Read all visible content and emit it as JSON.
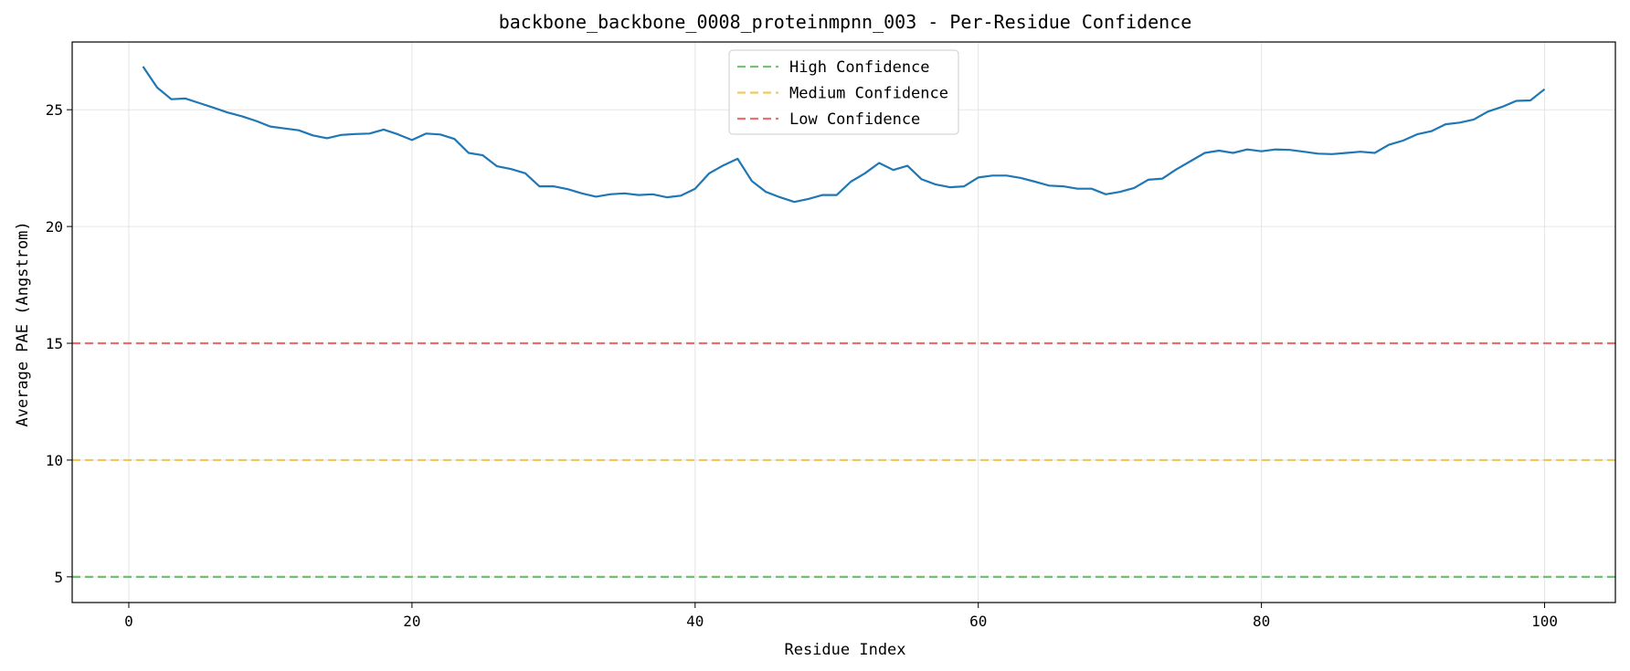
{
  "chart_data": {
    "type": "line",
    "title": "backbone_backbone_0008_proteinmpnn_003 - Per-Residue Confidence",
    "xlabel": "Residue Index",
    "ylabel": "Average PAE (Angstrom)",
    "xlim": [
      -4,
      105
    ],
    "ylim": [
      3.9,
      27.9
    ],
    "xticks": [
      0,
      20,
      40,
      60,
      80,
      100
    ],
    "yticks": [
      5,
      10,
      15,
      20,
      25
    ],
    "grid": true,
    "legend_position": "top-center",
    "series": [
      {
        "color": "#1f77b4",
        "x": [
          1,
          2,
          3,
          4,
          5,
          6,
          7,
          8,
          9,
          10,
          11,
          12,
          13,
          14,
          15,
          16,
          17,
          18,
          19,
          20,
          21,
          22,
          23,
          24,
          25,
          26,
          27,
          28,
          29,
          30,
          31,
          32,
          33,
          34,
          35,
          36,
          37,
          38,
          39,
          40,
          41,
          42,
          43,
          44,
          45,
          46,
          47,
          48,
          49,
          50,
          51,
          52,
          53,
          54,
          55,
          56,
          57,
          58,
          59,
          60,
          61,
          62,
          63,
          64,
          65,
          66,
          67,
          68,
          69,
          70,
          71,
          72,
          73,
          74,
          75,
          76,
          77,
          78,
          79,
          80,
          81,
          82,
          83,
          84,
          85,
          86,
          87,
          88,
          89,
          90,
          91,
          92,
          93,
          94,
          95,
          96,
          97,
          98,
          99,
          100
        ],
        "values": [
          26.85,
          25.95,
          25.45,
          25.48,
          25.28,
          25.08,
          24.88,
          24.72,
          24.52,
          24.28,
          24.2,
          24.12,
          23.9,
          23.78,
          23.92,
          23.96,
          23.98,
          24.15,
          23.95,
          23.7,
          23.98,
          23.94,
          23.75,
          23.15,
          23.05,
          22.58,
          22.46,
          22.28,
          21.72,
          21.72,
          21.6,
          21.42,
          21.28,
          21.38,
          21.42,
          21.35,
          21.38,
          21.25,
          21.32,
          21.62,
          22.28,
          22.62,
          22.9,
          21.95,
          21.48,
          21.25,
          21.05,
          21.18,
          21.35,
          21.35,
          21.92,
          22.28,
          22.72,
          22.42,
          22.6,
          22.02,
          21.8,
          21.68,
          21.72,
          22.1,
          22.18,
          22.18,
          22.08,
          21.92,
          21.75,
          21.72,
          21.62,
          21.62,
          21.38,
          21.48,
          21.65,
          22.0,
          22.05,
          22.45,
          22.8,
          23.15,
          23.25,
          23.15,
          23.3,
          23.22,
          23.3,
          23.28,
          23.2,
          23.12,
          23.1,
          23.15,
          23.2,
          23.15,
          23.5,
          23.68,
          23.95,
          24.08,
          24.38,
          24.45,
          24.58,
          24.92,
          25.12,
          25.38,
          25.4,
          25.88
        ]
      }
    ],
    "thresholds": [
      {
        "name": "High Confidence",
        "value": 5,
        "color": "#5cb85c"
      },
      {
        "name": "Medium Confidence",
        "value": 10,
        "color": "#f0c040"
      },
      {
        "name": "Low Confidence",
        "value": 15,
        "color": "#ee5555"
      }
    ]
  }
}
